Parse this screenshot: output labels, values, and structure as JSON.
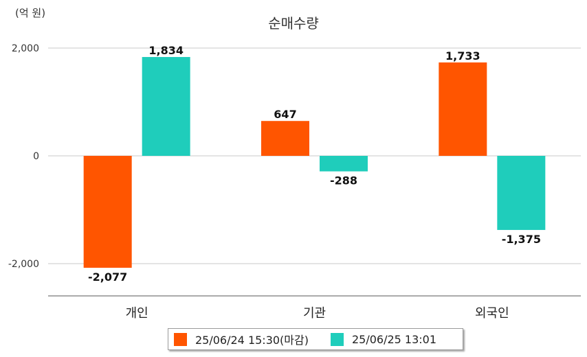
{
  "chart_data": {
    "type": "bar",
    "title": "순매수량",
    "unit_label": "(억 원)",
    "categories": [
      "개인",
      "기관",
      "외국인"
    ],
    "series": [
      {
        "name": "25/06/24 15:30(마감)",
        "values": [
          -2077,
          647,
          1733
        ],
        "color": "#ff5500"
      },
      {
        "name": "25/06/25 13:01",
        "values": [
          1834,
          -288,
          -1375
        ],
        "color": "#1fcdbb"
      }
    ],
    "value_labels": [
      [
        "-2,077",
        "647",
        "1,733"
      ],
      [
        "1,834",
        "-288",
        "-1,375"
      ]
    ],
    "yticks": [
      2000,
      0,
      -2000
    ],
    "ytick_labels": [
      "2,000",
      "0",
      "-2,000"
    ],
    "ylim": [
      -2600,
      2000
    ],
    "grid": true,
    "legend_position": "bottom"
  }
}
